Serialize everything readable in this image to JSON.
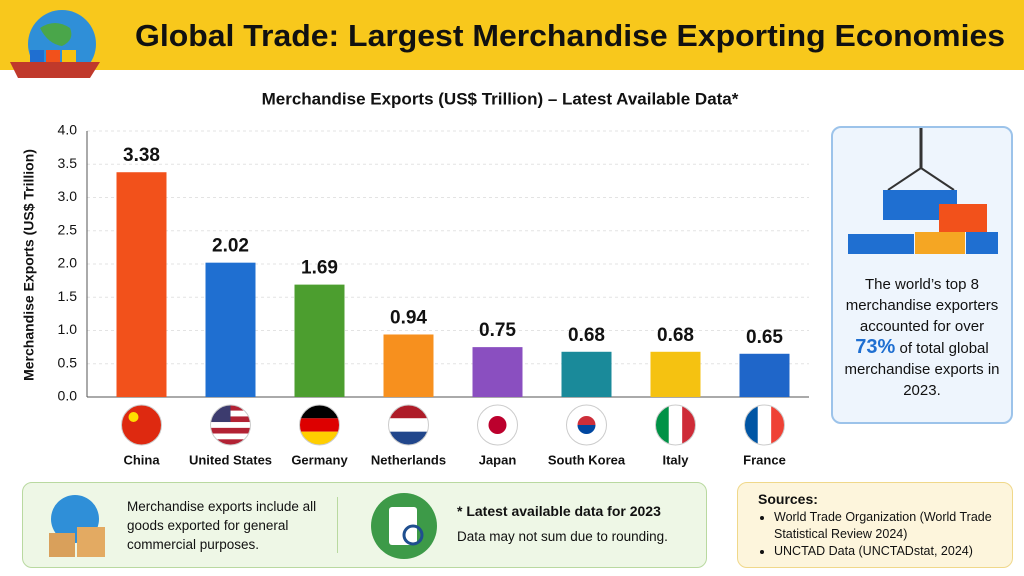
{
  "chart_data": {
    "type": "bar",
    "title": "Global Trade: Largest Merchandise Exporting Economies",
    "subtitle": "Merchandise Exports (US$ Trillion) – Latest Available Data*",
    "y_label": "Merchandise Exports (US$ Trillion)",
    "categories": [
      "China",
      "United States",
      "Germany",
      "Netherlands",
      "Japan",
      "South Korea",
      "Italy",
      "France"
    ],
    "values": [
      3.38,
      2.02,
      1.69,
      0.94,
      0.75,
      0.68,
      0.68,
      0.65
    ],
    "colors": [
      "#f2511b",
      "#1f6fd1",
      "#4c9e2f",
      "#f7901e",
      "#8a4fc0",
      "#1a8a9a",
      "#f5c211",
      "#1f66c9"
    ],
    "ylim": [
      0,
      4
    ],
    "yticks": [
      {
        "value": 0,
        "label": "0.0"
      },
      0.5,
      {
        "value": 1,
        "label": "1.0"
      },
      1.5,
      {
        "value": 2,
        "label": "2.0"
      },
      2.5,
      {
        "value": 3,
        "label": "3.0"
      },
      3.5,
      {
        "value": 4,
        "label": "4.0"
      }
    ],
    "grid": true
  },
  "side_note": {
    "before": "The world’s top 8 merchandise exporters accounted for over",
    "highlight": "73%",
    "after": "of total global merchandise exports in 2023."
  },
  "footer": {
    "note": "Merchandise exports include all goods exported for general commercial purposes.",
    "data_note_title": "* Latest available data for 2023",
    "data_note_text": "Data may not sum due to rounding.",
    "sources_title": "Sources:",
    "sources": [
      "World Trade Organization (World Trade Statistical Review 2024)",
      "UNCTAD Data (UNCTADstat, 2024)"
    ]
  }
}
